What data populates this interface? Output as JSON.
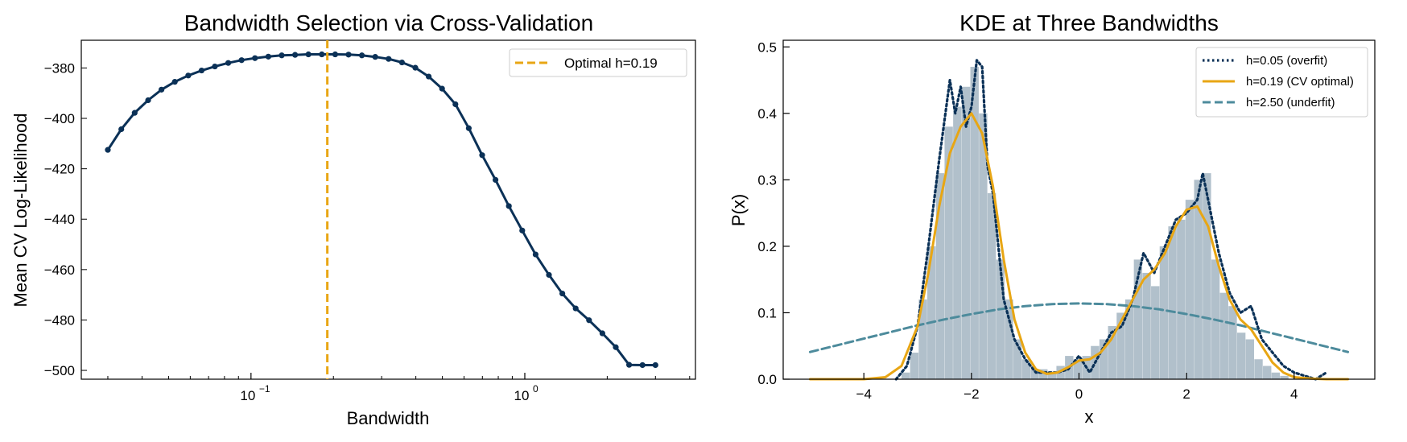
{
  "chart_data": [
    {
      "type": "line",
      "title": "Bandwidth Selection via Cross-Validation",
      "xlabel": "Bandwidth",
      "ylabel": "Mean CV Log-Likelihood",
      "xscale": "log",
      "xlim": [
        0.024,
        4.2
      ],
      "ylim": [
        -503.5,
        -369
      ],
      "yticks": [
        -380,
        -400,
        -420,
        -440,
        -460,
        -480,
        -500
      ],
      "ytick_labels": [
        "−380",
        "−400",
        "−420",
        "−440",
        "−460",
        "−480",
        "−500"
      ],
      "xticks": [
        0.1,
        1.0
      ],
      "xtick_labels": [
        "10",
        "10"
      ],
      "xtick_exponents": [
        "−1",
        "0"
      ],
      "legend": "top-right",
      "series": [
        {
          "name": "",
          "color": "#0b3157",
          "marker": "dot",
          "x": [
            0.03,
            0.0336,
            0.0376,
            0.0421,
            0.0471,
            0.0527,
            0.059,
            0.066,
            0.0738,
            0.0826,
            0.0924,
            0.1034,
            0.1157,
            0.1295,
            0.1449,
            0.1621,
            0.1814,
            0.203,
            0.2271,
            0.2541,
            0.2843,
            0.3181,
            0.356,
            0.3983,
            0.4457,
            0.4987,
            0.558,
            0.6243,
            0.6986,
            0.7817,
            0.8746,
            0.9787,
            1.0951,
            1.2253,
            1.371,
            1.534,
            1.7165,
            1.9206,
            2.149,
            2.4046,
            2.6906,
            3.0
          ],
          "values": [
            -412.5,
            -404.3,
            -397.8,
            -392.8,
            -388.6,
            -385.5,
            -383.0,
            -381.0,
            -379.4,
            -378.0,
            -376.9,
            -376.1,
            -375.5,
            -375.0,
            -374.8,
            -374.6,
            -374.6,
            -374.6,
            -374.7,
            -375.0,
            -375.6,
            -376.4,
            -377.8,
            -379.9,
            -383.4,
            -388.2,
            -394.4,
            -403.9,
            -414.6,
            -424.4,
            -434.8,
            -444.5,
            -454.0,
            -462.1,
            -469.5,
            -475.4,
            -480.1,
            -485.3,
            -490.8,
            -497.8,
            -497.9,
            -497.9
          ]
        }
      ],
      "vline": {
        "x": 0.19,
        "label": "Optimal h=0.19",
        "color": "#e8a614",
        "style": "dashed"
      }
    },
    {
      "type": "line",
      "title": "KDE at Three Bandwidths",
      "xlabel": "x",
      "ylabel": "P(x)",
      "xlim": [
        -5.5,
        5.5
      ],
      "ylim": [
        0,
        0.51
      ],
      "xticks": [
        -4,
        -2,
        0,
        2,
        4
      ],
      "xtick_labels": [
        "−4",
        "−2",
        "0",
        "2",
        "4"
      ],
      "yticks": [
        0.0,
        0.1,
        0.2,
        0.3,
        0.4,
        0.5
      ],
      "ytick_labels": [
        "0.0",
        "0.1",
        "0.2",
        "0.3",
        "0.4",
        "0.5"
      ],
      "legend": "top-right",
      "histogram": {
        "color": "#b1c0cb",
        "bin_width": 0.16,
        "bins_left": [
          -3.3,
          -3.14,
          -2.98,
          -2.82,
          -2.66,
          -2.5,
          -2.34,
          -2.18,
          -2.02,
          -1.86,
          -1.7,
          -1.54,
          -1.38,
          -1.22,
          -1.06,
          -0.9,
          -0.74,
          -0.58,
          -0.42,
          -0.26,
          -0.1,
          0.06,
          0.22,
          0.38,
          0.54,
          0.7,
          0.86,
          1.02,
          1.18,
          1.34,
          1.5,
          1.66,
          1.82,
          1.98,
          2.14,
          2.3,
          2.46,
          2.62,
          2.78,
          2.94,
          3.1,
          3.26,
          3.42,
          3.58,
          3.74
        ],
        "values": [
          0.01,
          0.04,
          0.12,
          0.2,
          0.31,
          0.38,
          0.41,
          0.44,
          0.47,
          0.4,
          0.28,
          0.18,
          0.12,
          0.06,
          0.03,
          0.015,
          0.015,
          0.01,
          0.02,
          0.035,
          0.03,
          0.035,
          0.05,
          0.06,
          0.08,
          0.1,
          0.12,
          0.18,
          0.16,
          0.14,
          0.2,
          0.23,
          0.24,
          0.27,
          0.3,
          0.31,
          0.18,
          0.13,
          0.11,
          0.07,
          0.06,
          0.03,
          0.02,
          0.01,
          0.005
        ]
      },
      "series": [
        {
          "name": "h=0.05 (overfit)",
          "color": "#0b3157",
          "style": "dotted",
          "x": [
            -3.4,
            -3.2,
            -3.0,
            -2.8,
            -2.6,
            -2.4,
            -2.3,
            -2.2,
            -2.1,
            -2.0,
            -1.9,
            -1.8,
            -1.7,
            -1.6,
            -1.4,
            -1.2,
            -1.0,
            -0.8,
            -0.6,
            -0.4,
            -0.2,
            0.0,
            0.2,
            0.4,
            0.6,
            0.8,
            1.0,
            1.2,
            1.4,
            1.6,
            1.8,
            2.0,
            2.2,
            2.3,
            2.4,
            2.6,
            2.8,
            3.0,
            3.2,
            3.4,
            3.6,
            3.8,
            4.0,
            4.4,
            4.6
          ],
          "values": [
            0.0,
            0.02,
            0.08,
            0.2,
            0.33,
            0.45,
            0.4,
            0.44,
            0.38,
            0.41,
            0.48,
            0.47,
            0.32,
            0.28,
            0.12,
            0.06,
            0.03,
            0.01,
            0.01,
            0.01,
            0.015,
            0.035,
            0.01,
            0.04,
            0.07,
            0.08,
            0.12,
            0.19,
            0.16,
            0.2,
            0.24,
            0.25,
            0.27,
            0.31,
            0.27,
            0.19,
            0.13,
            0.1,
            0.11,
            0.06,
            0.04,
            0.02,
            0.01,
            0.0,
            0.01
          ]
        },
        {
          "name": "h=0.19 (CV optimal)",
          "color": "#e8a614",
          "style": "solid",
          "x": [
            -5.0,
            -4.0,
            -3.6,
            -3.3,
            -3.0,
            -2.8,
            -2.6,
            -2.4,
            -2.2,
            -2.0,
            -1.8,
            -1.6,
            -1.4,
            -1.2,
            -1.0,
            -0.8,
            -0.6,
            -0.4,
            -0.2,
            0.0,
            0.2,
            0.4,
            0.6,
            0.8,
            1.0,
            1.2,
            1.4,
            1.6,
            1.8,
            2.0,
            2.2,
            2.4,
            2.6,
            2.8,
            3.0,
            3.2,
            3.4,
            3.6,
            3.8,
            4.0,
            4.3,
            4.6,
            5.0
          ],
          "values": [
            0.0,
            0.0,
            0.003,
            0.02,
            0.08,
            0.16,
            0.26,
            0.34,
            0.38,
            0.4,
            0.37,
            0.29,
            0.18,
            0.09,
            0.04,
            0.015,
            0.008,
            0.01,
            0.018,
            0.028,
            0.03,
            0.04,
            0.06,
            0.09,
            0.12,
            0.15,
            0.165,
            0.19,
            0.23,
            0.255,
            0.26,
            0.23,
            0.17,
            0.12,
            0.09,
            0.075,
            0.05,
            0.025,
            0.01,
            0.003,
            0.001,
            0.0,
            0.0
          ]
        },
        {
          "name": "h=2.50 (underfit)",
          "color": "#4d8b9c",
          "style": "dashed",
          "x": [
            -5.0,
            -4.5,
            -4.0,
            -3.5,
            -3.0,
            -2.5,
            -2.0,
            -1.5,
            -1.0,
            -0.5,
            0.0,
            0.5,
            1.0,
            1.5,
            2.0,
            2.5,
            3.0,
            3.5,
            4.0,
            4.5,
            5.0
          ],
          "values": [
            0.041,
            0.051,
            0.061,
            0.071,
            0.081,
            0.09,
            0.098,
            0.105,
            0.11,
            0.113,
            0.114,
            0.113,
            0.11,
            0.105,
            0.098,
            0.09,
            0.081,
            0.071,
            0.061,
            0.051,
            0.041
          ]
        }
      ]
    }
  ]
}
